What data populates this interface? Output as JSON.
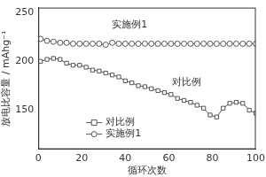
{
  "chart_data": {
    "type": "line",
    "x_label": "循环次数",
    "y_label": "放电比容量 / mAhg⁻¹",
    "annotations": [
      "实施例1",
      "对比例"
    ],
    "x": [
      1,
      4,
      7,
      10,
      13,
      16,
      19,
      22,
      25,
      28,
      31,
      34,
      37,
      40,
      43,
      46,
      49,
      52,
      55,
      58,
      61,
      64,
      67,
      70,
      73,
      76,
      79,
      82,
      85,
      88,
      91,
      94,
      97,
      100
    ],
    "series": [
      {
        "name": "对比例",
        "color": "#555555",
        "marker": "square",
        "line_style": "solid",
        "values": [
          200,
          202,
          203,
          202,
          198,
          196,
          196,
          194,
          191,
          190,
          188,
          186,
          184,
          180,
          178,
          175,
          174,
          172,
          170,
          168,
          166,
          162,
          160,
          158,
          155,
          152,
          145,
          143,
          152,
          157,
          158,
          157,
          150,
          147
        ]
      },
      {
        "name": "实施例1",
        "color": "#555555",
        "marker": "circle",
        "line_style": "solid",
        "values": [
          223,
          221,
          220,
          219,
          219,
          218,
          218,
          218,
          218,
          218,
          217,
          219,
          218,
          218,
          218,
          218,
          218,
          218,
          218,
          218,
          218,
          218,
          218,
          218,
          218,
          218,
          218,
          218,
          218,
          218,
          218,
          218,
          218,
          218
        ]
      }
    ],
    "xlim": [
      0,
      100
    ],
    "xticks": [
      0,
      20,
      40,
      60,
      80,
      100
    ],
    "ylim": [
      110,
      255
    ],
    "yticks": [
      150,
      200,
      250
    ],
    "grid": false,
    "legend": "lower left"
  }
}
